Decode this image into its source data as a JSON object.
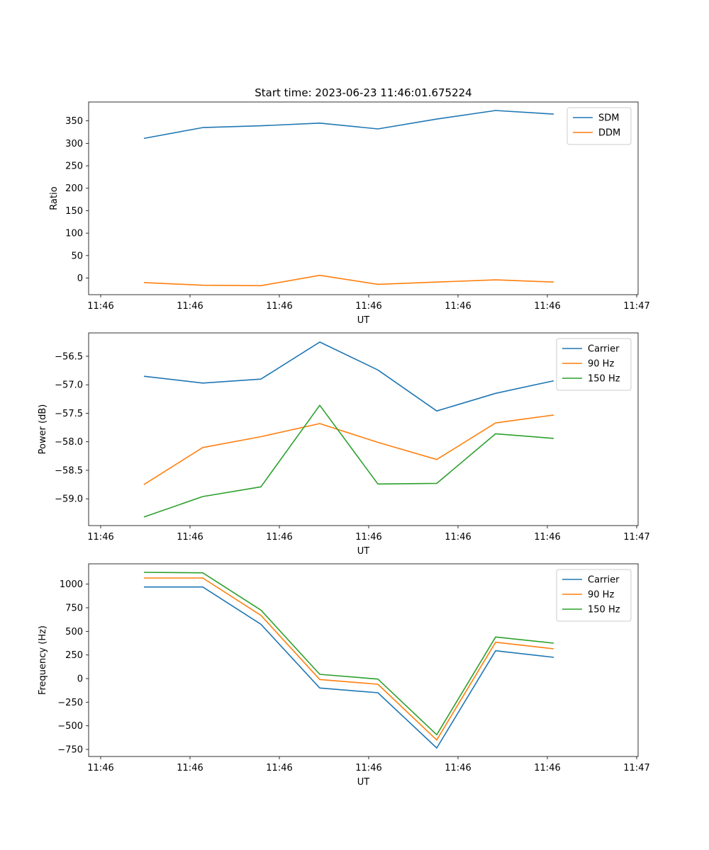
{
  "figure": {
    "title": "Start time: 2023-06-23 11:46:01.675224"
  },
  "colors": {
    "blue": "#1f77b4",
    "orange": "#ff7f0e",
    "green": "#2ca02c"
  },
  "chart_data": [
    {
      "type": "line",
      "title": "Start time: 2023-06-23 11:46:01.675224",
      "xlabel": "UT",
      "ylabel": "Ratio",
      "x_ticks": [
        "11:46",
        "11:46",
        "11:46",
        "11:46",
        "11:46",
        "11:46",
        "11:46"
      ],
      "x_tick_end": "11:47",
      "ylim": [
        -37,
        392
      ],
      "y_ticks": [
        "0",
        "50",
        "100",
        "150",
        "200",
        "250",
        "300",
        "350"
      ],
      "y_tick_values": [
        0,
        50,
        100,
        150,
        200,
        250,
        300,
        350
      ],
      "legend_position": "top-right",
      "series": [
        {
          "name": "SDM",
          "color": "#1f77b4",
          "values": [
            311,
            335,
            339,
            345,
            332,
            354,
            373,
            365
          ]
        },
        {
          "name": "DDM",
          "color": "#ff7f0e",
          "values": [
            -10,
            -16,
            -17,
            6,
            -14,
            -9,
            -4,
            -9
          ]
        }
      ]
    },
    {
      "type": "line",
      "xlabel": "UT",
      "ylabel": "Power (dB)",
      "x_ticks": [
        "11:46",
        "11:46",
        "11:46",
        "11:46",
        "11:46",
        "11:46",
        "11:46"
      ],
      "x_tick_end": "11:47",
      "ylim": [
        -59.47,
        -56.09
      ],
      "y_ticks": [
        "−59.0",
        "−58.5",
        "−58.0",
        "−57.5",
        "−57.0",
        "−56.5"
      ],
      "y_tick_values": [
        -59.0,
        -58.5,
        -58.0,
        -57.5,
        -57.0,
        -56.5
      ],
      "legend_position": "top-right",
      "series": [
        {
          "name": "Carrier",
          "color": "#1f77b4",
          "values": [
            -56.85,
            -56.97,
            -56.9,
            -56.25,
            -56.74,
            -57.46,
            -57.15,
            -56.93
          ]
        },
        {
          "name": "90 Hz",
          "color": "#ff7f0e",
          "values": [
            -58.75,
            -58.1,
            -57.91,
            -57.68,
            -58.01,
            -58.31,
            -57.67,
            -57.53
          ]
        },
        {
          "name": "150 Hz",
          "color": "#2ca02c",
          "values": [
            -59.32,
            -58.96,
            -58.79,
            -57.36,
            -58.74,
            -58.73,
            -57.86,
            -57.94
          ]
        }
      ]
    },
    {
      "type": "line",
      "xlabel": "UT",
      "ylabel": "Frequency (Hz)",
      "x_ticks": [
        "11:46",
        "11:46",
        "11:46",
        "11:46",
        "11:46",
        "11:46",
        "11:46"
      ],
      "x_tick_end": "11:47",
      "ylim": [
        -825,
        1215
      ],
      "y_ticks": [
        "−750",
        "−500",
        "−250",
        "0",
        "250",
        "500",
        "750",
        "1000"
      ],
      "y_tick_values": [
        -750,
        -500,
        -250,
        0,
        250,
        500,
        750,
        1000
      ],
      "legend_position": "top-right",
      "series": [
        {
          "name": "Carrier",
          "color": "#1f77b4",
          "values": [
            970,
            970,
            575,
            -100,
            -150,
            -735,
            295,
            225
          ]
        },
        {
          "name": "90 Hz",
          "color": "#ff7f0e",
          "values": [
            1065,
            1065,
            670,
            -10,
            -60,
            -650,
            385,
            315
          ]
        },
        {
          "name": "150 Hz",
          "color": "#2ca02c",
          "values": [
            1125,
            1120,
            725,
            45,
            -5,
            -595,
            440,
            375
          ]
        }
      ]
    }
  ]
}
